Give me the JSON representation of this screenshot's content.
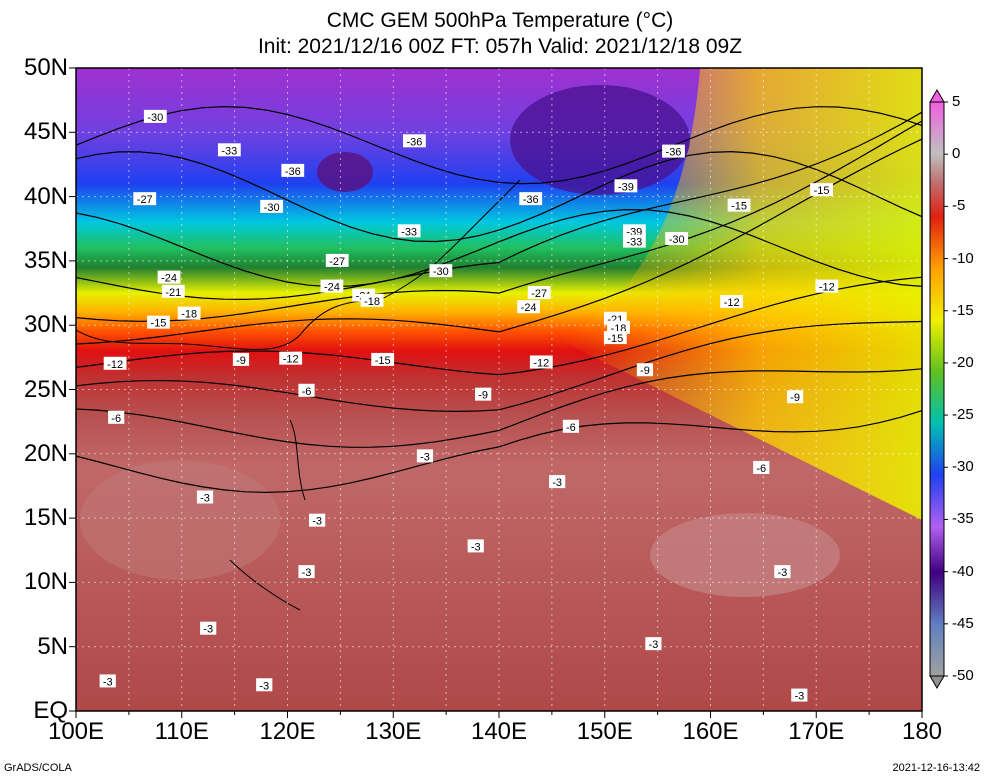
{
  "title": {
    "line1": "CMC GEM 500hPa Temperature (°C)",
    "line2": "Init: 2021/12/16 00Z  FT: 057h  Valid: 2021/12/18 09Z"
  },
  "lat_labels": [
    "50N",
    "45N",
    "40N",
    "35N",
    "30N",
    "25N",
    "20N",
    "15N",
    "10N",
    "5N",
    "EQ"
  ],
  "lon_labels": [
    "100E",
    "110E",
    "120E",
    "130E",
    "140E",
    "150E",
    "160E",
    "170E",
    "180"
  ],
  "colorbar": {
    "ticks": [
      "5",
      "0",
      "-5",
      "-10",
      "-15",
      "-20",
      "-25",
      "-30",
      "-35",
      "-40",
      "-45",
      "-50"
    ],
    "colors": [
      "#f060e0",
      "#c0c0c0",
      "#c07070",
      "#e02010",
      "#ffa000",
      "#f0f000",
      "#60c020",
      "#00c0b0",
      "#2040f0",
      "#b060f0",
      "#400080",
      "#6080c0",
      "#a0a0a0"
    ]
  },
  "contour_labels": [
    {
      "text": "-30",
      "lon": 107.5,
      "lat": 46.2
    },
    {
      "text": "-33",
      "lon": 114.5,
      "lat": 43.6
    },
    {
      "text": "-36",
      "lon": 120.5,
      "lat": 42.0
    },
    {
      "text": "-36",
      "lon": 132.0,
      "lat": 44.3
    },
    {
      "text": "-36",
      "lon": 156.5,
      "lat": 43.5
    },
    {
      "text": "-39",
      "lon": 152.0,
      "lat": 40.8
    },
    {
      "text": "-36",
      "lon": 143.0,
      "lat": 39.8
    },
    {
      "text": "-27",
      "lon": 106.5,
      "lat": 39.8
    },
    {
      "text": "-30",
      "lon": 118.5,
      "lat": 39.2
    },
    {
      "text": "-33",
      "lon": 131.5,
      "lat": 37.3
    },
    {
      "text": "-39",
      "lon": 152.8,
      "lat": 37.3
    },
    {
      "text": "-33",
      "lon": 152.8,
      "lat": 36.5
    },
    {
      "text": "-30",
      "lon": 156.8,
      "lat": 36.7
    },
    {
      "text": "-27",
      "lon": 124.7,
      "lat": 35.0
    },
    {
      "text": "-30",
      "lon": 134.5,
      "lat": 34.2
    },
    {
      "text": "-24",
      "lon": 108.8,
      "lat": 33.7
    },
    {
      "text": "-24",
      "lon": 124.2,
      "lat": 33.0
    },
    {
      "text": "-21",
      "lon": 109.2,
      "lat": 32.6
    },
    {
      "text": "-21",
      "lon": 127.2,
      "lat": 32.3
    },
    {
      "text": "-18",
      "lon": 128.0,
      "lat": 31.9
    },
    {
      "text": "-27",
      "lon": 143.8,
      "lat": 32.5
    },
    {
      "text": "-24",
      "lon": 142.8,
      "lat": 31.4
    },
    {
      "text": "-21",
      "lon": 151.0,
      "lat": 30.5
    },
    {
      "text": "-18",
      "lon": 151.3,
      "lat": 29.8
    },
    {
      "text": "-15",
      "lon": 151.0,
      "lat": 29.0
    },
    {
      "text": "-18",
      "lon": 110.7,
      "lat": 30.9
    },
    {
      "text": "-15",
      "lon": 107.8,
      "lat": 30.2
    },
    {
      "text": "-12",
      "lon": 103.7,
      "lat": 27.0
    },
    {
      "text": "-9",
      "lon": 115.6,
      "lat": 27.3
    },
    {
      "text": "-12",
      "lon": 120.3,
      "lat": 27.4
    },
    {
      "text": "-15",
      "lon": 129.0,
      "lat": 27.3
    },
    {
      "text": "-12",
      "lon": 144.0,
      "lat": 27.1
    },
    {
      "text": "-9",
      "lon": 153.8,
      "lat": 26.5
    },
    {
      "text": "-12",
      "lon": 162.0,
      "lat": 31.8
    },
    {
      "text": "-12",
      "lon": 171.0,
      "lat": 33.0
    },
    {
      "text": "-15",
      "lon": 170.5,
      "lat": 40.5
    },
    {
      "text": "-15",
      "lon": 162.7,
      "lat": 39.3
    },
    {
      "text": "-9",
      "lon": 168.0,
      "lat": 24.4
    },
    {
      "text": "-6",
      "lon": 121.8,
      "lat": 24.9
    },
    {
      "text": "-9",
      "lon": 138.5,
      "lat": 24.6
    },
    {
      "text": "-6",
      "lon": 103.8,
      "lat": 22.8
    },
    {
      "text": "-6",
      "lon": 146.8,
      "lat": 22.1
    },
    {
      "text": "-6",
      "lon": 164.8,
      "lat": 18.9
    },
    {
      "text": "-3",
      "lon": 133.0,
      "lat": 19.8
    },
    {
      "text": "-3",
      "lon": 145.5,
      "lat": 17.8
    },
    {
      "text": "-3",
      "lon": 112.2,
      "lat": 16.6
    },
    {
      "text": "-3",
      "lon": 122.8,
      "lat": 14.8
    },
    {
      "text": "-3",
      "lon": 137.8,
      "lat": 12.8
    },
    {
      "text": "-3",
      "lon": 121.8,
      "lat": 10.8
    },
    {
      "text": "-3",
      "lon": 112.5,
      "lat": 6.4
    },
    {
      "text": "-3",
      "lon": 166.8,
      "lat": 10.8
    },
    {
      "text": "-3",
      "lon": 154.6,
      "lat": 5.2
    },
    {
      "text": "-3",
      "lon": 103.0,
      "lat": 2.3
    },
    {
      "text": "-3",
      "lon": 117.8,
      "lat": 2.0
    },
    {
      "text": "-3",
      "lon": 168.4,
      "lat": 1.2
    },
    {
      "text": "-3",
      "lon": 115.5,
      "lat": -2.0
    },
    {
      "text": "-3",
      "lon": 119.5,
      "lat": -1.4
    }
  ],
  "footer": {
    "left": "GrADS/COLA",
    "right": "2021-12-16-13:42"
  }
}
